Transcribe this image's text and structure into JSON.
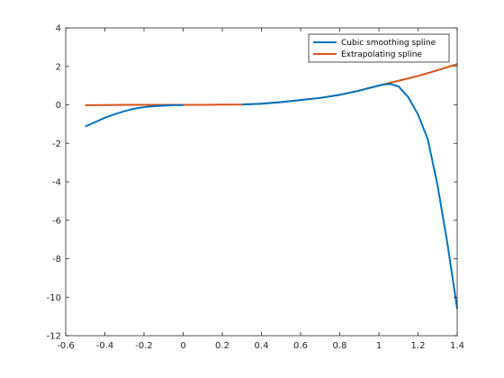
{
  "chart_data": {
    "type": "line",
    "title": "",
    "xlabel": "",
    "ylabel": "",
    "xlim": [
      -0.6,
      1.4
    ],
    "ylim": [
      -12,
      4
    ],
    "xticks": [
      -0.6,
      -0.4,
      -0.2,
      0,
      0.2,
      0.4,
      0.6,
      0.8,
      1,
      1.2,
      1.4
    ],
    "xtick_labels": [
      "-0.6",
      "-0.4",
      "-0.2",
      "0",
      "0.2",
      "0.4",
      "0.6",
      "0.8",
      "1",
      "1.2",
      "1.4"
    ],
    "yticks": [
      4,
      2,
      0,
      -2,
      -4,
      -6,
      -8,
      -10,
      -12
    ],
    "ytick_labels": [
      "4",
      "2",
      "0",
      "-2",
      "-4",
      "-6",
      "-8",
      "-10",
      "-12"
    ],
    "grid": false,
    "legend_position": "top-right",
    "series": [
      {
        "name": "Cubic smoothing spline",
        "color": "#0072BD",
        "x": [
          -0.5,
          -0.45,
          -0.4,
          -0.35,
          -0.3,
          -0.25,
          -0.2,
          -0.15,
          -0.1,
          -0.05,
          0
        ],
        "y": [
          -1.13,
          -0.9,
          -0.67,
          -0.49,
          -0.33,
          -0.2,
          -0.12,
          -0.07,
          -0.04,
          -0.02,
          -0.01
        ]
      },
      {
        "name": "Extrapolating spline",
        "color": "#D95319",
        "x": [
          -0.5,
          -0.4,
          -0.3,
          -0.2,
          -0.1,
          0,
          0.1,
          0.2,
          0.3,
          0.4,
          0.5,
          0.6,
          0.7,
          0.8,
          0.9,
          1.0,
          1.1,
          1.2,
          1.3,
          1.4
        ],
        "y": [
          -0.02,
          -0.01,
          0.0,
          0.0,
          0.0,
          0.0,
          0.0,
          0.01,
          0.02,
          0.06,
          0.14,
          0.25,
          0.36,
          0.52,
          0.74,
          1.0,
          1.25,
          1.5,
          1.8,
          2.12
        ]
      },
      {
        "name": "",
        "color": "#0072BD",
        "x": [
          0.3,
          0.4,
          0.5,
          0.6,
          0.7,
          0.8,
          0.9,
          0.95,
          1.0,
          1.03,
          1.06,
          1.1,
          1.15,
          1.2,
          1.25,
          1.3,
          1.35,
          1.4
        ],
        "y": [
          0.02,
          0.06,
          0.14,
          0.25,
          0.36,
          0.52,
          0.74,
          0.88,
          1.0,
          1.07,
          1.08,
          0.96,
          0.4,
          -0.5,
          -1.8,
          -4.2,
          -7.2,
          -10.6
        ]
      }
    ]
  }
}
